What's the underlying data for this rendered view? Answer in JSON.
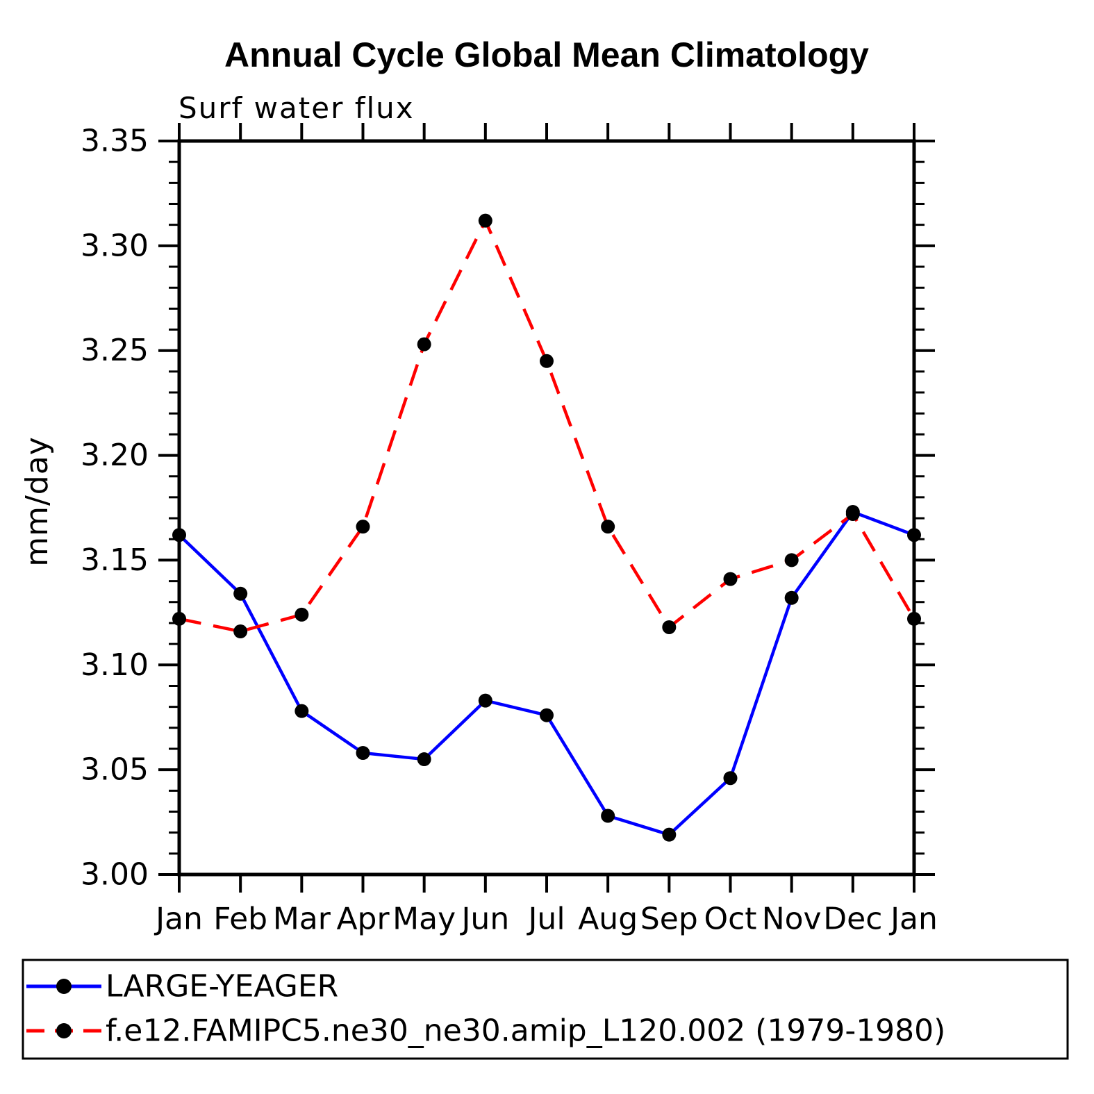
{
  "chart_data": {
    "type": "line",
    "title": "Annual Cycle Global Mean Climatology",
    "subtitle": "Surf water flux",
    "ylabel": "mm/day",
    "xlabel": "",
    "categories": [
      "Jan",
      "Feb",
      "Mar",
      "Apr",
      "May",
      "Jun",
      "Jul",
      "Aug",
      "Sep",
      "Oct",
      "Nov",
      "Dec",
      "Jan"
    ],
    "ylim": [
      3.0,
      3.35
    ],
    "ytick_step": 0.05,
    "ytick_minor_step": 0.01,
    "ytick_labels": [
      "3.00",
      "3.05",
      "3.10",
      "3.15",
      "3.20",
      "3.25",
      "3.30",
      "3.35"
    ],
    "grid": false,
    "legend_position": "bottom-left-box",
    "axis_color": "#000000",
    "background_color": "#ffffff",
    "marker_color": "#000000",
    "series": [
      {
        "name": "LARGE-YEAGER",
        "color": "#0000ff",
        "style": "solid",
        "marker": "circle",
        "values": [
          3.162,
          3.134,
          3.078,
          3.058,
          3.055,
          3.083,
          3.076,
          3.028,
          3.019,
          3.046,
          3.132,
          3.173,
          3.162
        ]
      },
      {
        "name": "f.e12.FAMIPC5.ne30_ne30.amip_L120.002 (1979-1980)",
        "color": "#ff0000",
        "style": "dashed",
        "marker": "circle",
        "values": [
          3.122,
          3.116,
          3.124,
          3.166,
          3.253,
          3.312,
          3.245,
          3.166,
          3.118,
          3.141,
          3.15,
          3.172,
          3.122
        ]
      }
    ]
  }
}
